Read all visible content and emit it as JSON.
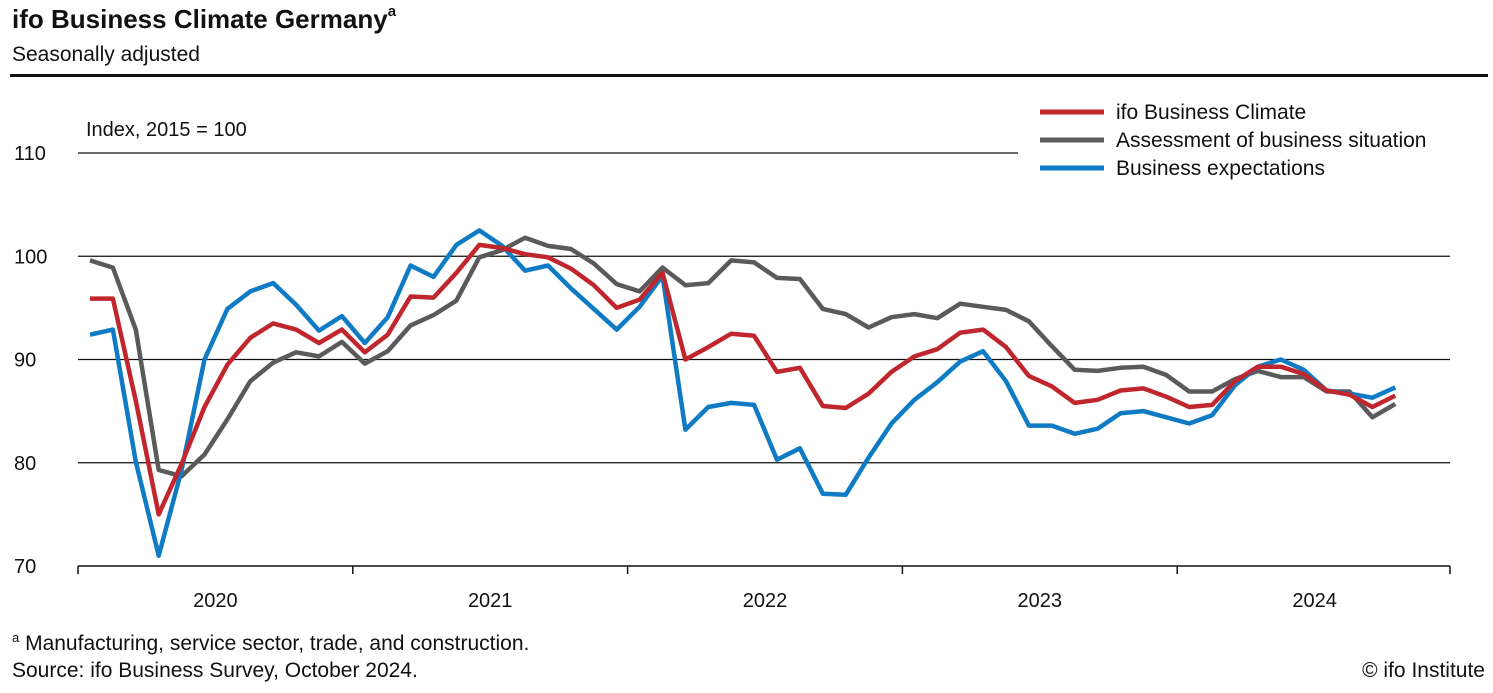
{
  "header": {
    "title": "ifo Business Climate Germany",
    "title_note_marker": "a",
    "subtitle": "Seasonally adjusted"
  },
  "footer": {
    "note_marker": "a",
    "note": "Manufacturing, service sector, trade, and construction.",
    "source": "Source: ifo Business Survey, October 2024.",
    "copyright": "© ifo Institute"
  },
  "chart_data": {
    "type": "line",
    "title": "ifo Business Climate Germany",
    "subtitle": "Seasonally adjusted",
    "ylabel": "Index, 2015 = 100",
    "xlabel": "",
    "ylim": [
      70,
      110
    ],
    "yticks": [
      70,
      80,
      90,
      100,
      110
    ],
    "x_start": "2020-01",
    "x_end": "2024-10",
    "year_labels": [
      "2020",
      "2021",
      "2022",
      "2023",
      "2024"
    ],
    "grid": true,
    "legend_position": "top-right",
    "series": [
      {
        "name": "ifo Business Climate",
        "color": "#c0262d",
        "values": [
          95.9,
          95.9,
          86.0,
          75.0,
          79.9,
          85.4,
          89.5,
          92.1,
          93.5,
          92.9,
          91.6,
          92.9,
          90.7,
          92.4,
          96.1,
          96.0,
          98.4,
          101.1,
          100.8,
          100.2,
          99.9,
          98.8,
          97.2,
          95.0,
          95.8,
          98.4,
          90.0,
          91.2,
          92.5,
          92.3,
          88.8,
          89.2,
          85.5,
          85.3,
          86.7,
          88.8,
          90.3,
          91.0,
          92.6,
          92.9,
          91.2,
          88.4,
          87.4,
          85.8,
          86.1,
          87.0,
          87.2,
          86.4,
          85.4,
          85.6,
          87.9,
          89.3,
          89.3,
          88.6,
          87.0,
          86.6,
          85.4,
          86.5
        ]
      },
      {
        "name": "Assessment of business situation",
        "color": "#5a5a5a",
        "values": [
          99.6,
          98.9,
          92.9,
          79.3,
          78.7,
          80.8,
          84.2,
          87.9,
          89.7,
          90.7,
          90.3,
          91.7,
          89.6,
          90.8,
          93.3,
          94.3,
          95.7,
          99.9,
          100.6,
          101.8,
          101.0,
          100.7,
          99.3,
          97.3,
          96.6,
          98.9,
          97.2,
          97.4,
          99.6,
          99.4,
          97.9,
          97.8,
          94.9,
          94.4,
          93.1,
          94.1,
          94.4,
          94.0,
          95.4,
          95.1,
          94.8,
          93.7,
          91.3,
          89.0,
          88.9,
          89.2,
          89.3,
          88.5,
          86.9,
          86.9,
          88.1,
          88.9,
          88.3,
          88.3,
          86.9,
          86.9,
          84.4,
          85.7
        ]
      },
      {
        "name": "Business expectations",
        "color": "#0f7bc4",
        "values": [
          92.4,
          92.9,
          80.1,
          71.0,
          79.3,
          90.0,
          94.9,
          96.6,
          97.4,
          95.3,
          92.8,
          94.2,
          91.6,
          94.1,
          99.1,
          98.0,
          101.1,
          102.5,
          101.0,
          98.6,
          99.1,
          96.9,
          94.9,
          92.9,
          95.1,
          98.1,
          83.2,
          85.4,
          85.8,
          85.6,
          80.3,
          81.4,
          77.0,
          76.9,
          80.5,
          83.8,
          86.1,
          87.8,
          89.8,
          90.8,
          87.9,
          83.6,
          83.6,
          82.8,
          83.3,
          84.8,
          85.0,
          84.4,
          83.8,
          84.6,
          87.5,
          89.3,
          90.0,
          89.0,
          87.0,
          86.7,
          86.3,
          87.3
        ]
      }
    ]
  }
}
